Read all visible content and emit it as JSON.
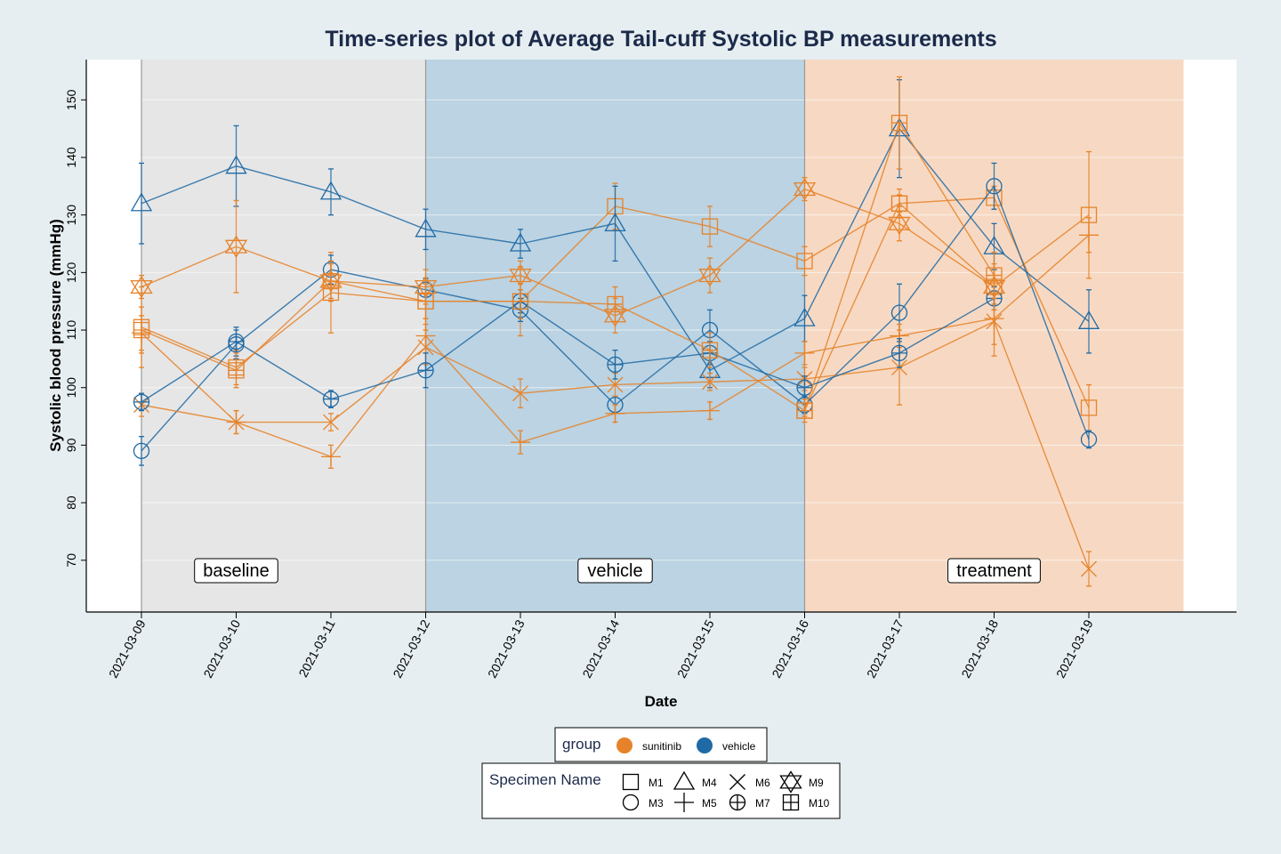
{
  "chart_data": {
    "type": "line",
    "title": "Time-series plot of Average Tail-cuff Systolic BP measurements",
    "xlabel": "Date",
    "ylabel": "Systolic blood pressure (mmHg)",
    "x": [
      "2021-03-09",
      "2021-03-10",
      "2021-03-11",
      "2021-03-12",
      "2021-03-13",
      "2021-03-14",
      "2021-03-15",
      "2021-03-16",
      "2021-03-17",
      "2021-03-18",
      "2021-03-19"
    ],
    "yticks": [
      70,
      80,
      90,
      100,
      110,
      120,
      130,
      140,
      150
    ],
    "ylim": [
      61,
      157
    ],
    "grid": true,
    "phases": [
      {
        "label": "baseline",
        "start": "2021-03-09",
        "end": "2021-03-12",
        "color": "#e6e6e6"
      },
      {
        "label": "vehicle",
        "start": "2021-03-12",
        "end": "2021-03-16",
        "color": "#bbd3e2"
      },
      {
        "label": "treatment",
        "start": "2021-03-16",
        "end": "2021-03-20",
        "color": "#f7d9c3"
      }
    ],
    "group_colors": {
      "sunitinib": "#e6832a",
      "vehicle": "#1f6aa5"
    },
    "series": [
      {
        "name": "M1",
        "marker": "square",
        "values": [
          110.5,
          103.5,
          116.5,
          115,
          115,
          131.5,
          128,
          122,
          132,
          117.5,
          130
        ],
        "errors": [
          7,
          3,
          7,
          4,
          6,
          4,
          3.5,
          2.5,
          2.5,
          3,
          11
        ],
        "colors": [
          "sunitinib",
          "sunitinib",
          "sunitinib",
          "sunitinib",
          "sunitinib",
          "sunitinib",
          "sunitinib",
          "sunitinib",
          "sunitinib",
          "sunitinib",
          "sunitinib"
        ]
      },
      {
        "name": "M1",
        "marker": "square",
        "values": [
          null,
          null,
          null,
          null,
          null,
          null,
          null,
          96,
          132,
          133,
          96.5
        ],
        "errors": [
          null,
          null,
          null,
          null,
          null,
          null,
          null,
          1,
          1.5,
          2,
          4
        ],
        "colors": [
          "sunitinib",
          "sunitinib",
          "sunitinib",
          "sunitinib",
          "sunitinib",
          "sunitinib",
          "sunitinib",
          "sunitinib",
          "sunitinib",
          "sunitinib",
          "sunitinib"
        ],
        "hidden_legend": true
      },
      {
        "name": "M3",
        "marker": "circle",
        "values": [
          89,
          107.5,
          120.5,
          117,
          113.5,
          97,
          110,
          97,
          113,
          135,
          91
        ],
        "errors": [
          2.5,
          2.5,
          2.5,
          2,
          2,
          1.5,
          3.5,
          1.5,
          5,
          4,
          1.5
        ],
        "colors": [
          "vehicle",
          "vehicle",
          "vehicle",
          "vehicle",
          "vehicle",
          "vehicle",
          "vehicle",
          "vehicle",
          "vehicle",
          "vehicle",
          "vehicle"
        ]
      },
      {
        "name": "M4",
        "marker": "triangle",
        "values": [
          132,
          138.5,
          134,
          127.5,
          125,
          128.5,
          103,
          112,
          145,
          124.5,
          111.5
        ],
        "errors": [
          7,
          7,
          4,
          3.5,
          2.5,
          6.5,
          3,
          4,
          8.5,
          4,
          5.5
        ],
        "colors": [
          "vehicle",
          "vehicle",
          "vehicle",
          "vehicle",
          "vehicle",
          "vehicle",
          "vehicle",
          "vehicle",
          "vehicle",
          "vehicle",
          "vehicle"
        ]
      },
      {
        "name": "M5",
        "marker": "plus",
        "values": [
          109.5,
          94,
          88,
          109,
          90.5,
          95.5,
          96,
          106,
          109,
          112,
          126.5
        ],
        "errors": [
          3,
          2,
          2,
          3,
          2,
          1.5,
          1.5,
          2,
          2,
          6.5,
          3
        ],
        "colors": [
          "sunitinib",
          "sunitinib",
          "sunitinib",
          "sunitinib",
          "sunitinib",
          "sunitinib",
          "sunitinib",
          "sunitinib",
          "sunitinib",
          "sunitinib",
          "sunitinib"
        ]
      },
      {
        "name": "M6",
        "marker": "x",
        "values": [
          97,
          94,
          94,
          107,
          99,
          100.5,
          101,
          101.5,
          103.5,
          111.5,
          68.5
        ],
        "errors": [
          2,
          2,
          1.5,
          3,
          2.5,
          2,
          1.5,
          2,
          6.5,
          4,
          3
        ],
        "colors": [
          "sunitinib",
          "sunitinib",
          "sunitinib",
          "sunitinib",
          "sunitinib",
          "sunitinib",
          "sunitinib",
          "sunitinib",
          "sunitinib",
          "sunitinib",
          "sunitinib"
        ]
      },
      {
        "name": "M7",
        "marker": "circleplus",
        "values": [
          97.5,
          108,
          98,
          103,
          115,
          104,
          106,
          100,
          106,
          115.5,
          null
        ],
        "errors": [
          1.5,
          2.5,
          1.5,
          3,
          2,
          2.5,
          2,
          2,
          2.5,
          2,
          null
        ],
        "colors": [
          "vehicle",
          "vehicle",
          "vehicle",
          "vehicle",
          "vehicle",
          "vehicle",
          "vehicle",
          "vehicle",
          "vehicle",
          "vehicle",
          "vehicle"
        ]
      },
      {
        "name": "M9",
        "marker": "star",
        "values": [
          117.5,
          124.5,
          118.5,
          117.5,
          119.5,
          112.5,
          119.5,
          134.5,
          128.5,
          117.5,
          null
        ],
        "errors": [
          2,
          8,
          3.5,
          3,
          2.5,
          3,
          3,
          2,
          3,
          4,
          null
        ],
        "colors": [
          "sunitinib",
          "sunitinib",
          "sunitinib",
          "sunitinib",
          "sunitinib",
          "sunitinib",
          "sunitinib",
          "sunitinib",
          "sunitinib",
          "sunitinib",
          "sunitinib"
        ]
      },
      {
        "name": "M10",
        "marker": "squareplus",
        "values": [
          110,
          103,
          118.5,
          115,
          115,
          114.5,
          106.5,
          96,
          146,
          119.5,
          null
        ],
        "errors": [
          4,
          3,
          3,
          3,
          3,
          3,
          3,
          2,
          8,
          4,
          null
        ],
        "colors": [
          "sunitinib",
          "sunitinib",
          "sunitinib",
          "sunitinib",
          "sunitinib",
          "sunitinib",
          "sunitinib",
          "sunitinib",
          "sunitinib",
          "sunitinib",
          "sunitinib"
        ]
      }
    ],
    "legend_group": {
      "title": "group",
      "items": [
        {
          "label": "sunitinib",
          "color": "#e6832a"
        },
        {
          "label": "vehicle",
          "color": "#1f6aa5"
        }
      ]
    },
    "legend_specimen": {
      "title": "Specimen Name",
      "items": [
        {
          "label": "M1",
          "marker": "square"
        },
        {
          "label": "M4",
          "marker": "triangle"
        },
        {
          "label": "M6",
          "marker": "x"
        },
        {
          "label": "M9",
          "marker": "star"
        },
        {
          "label": "M3",
          "marker": "circle"
        },
        {
          "label": "M5",
          "marker": "plus"
        },
        {
          "label": "M7",
          "marker": "circleplus"
        },
        {
          "label": "M10",
          "marker": "squareplus"
        }
      ]
    }
  }
}
